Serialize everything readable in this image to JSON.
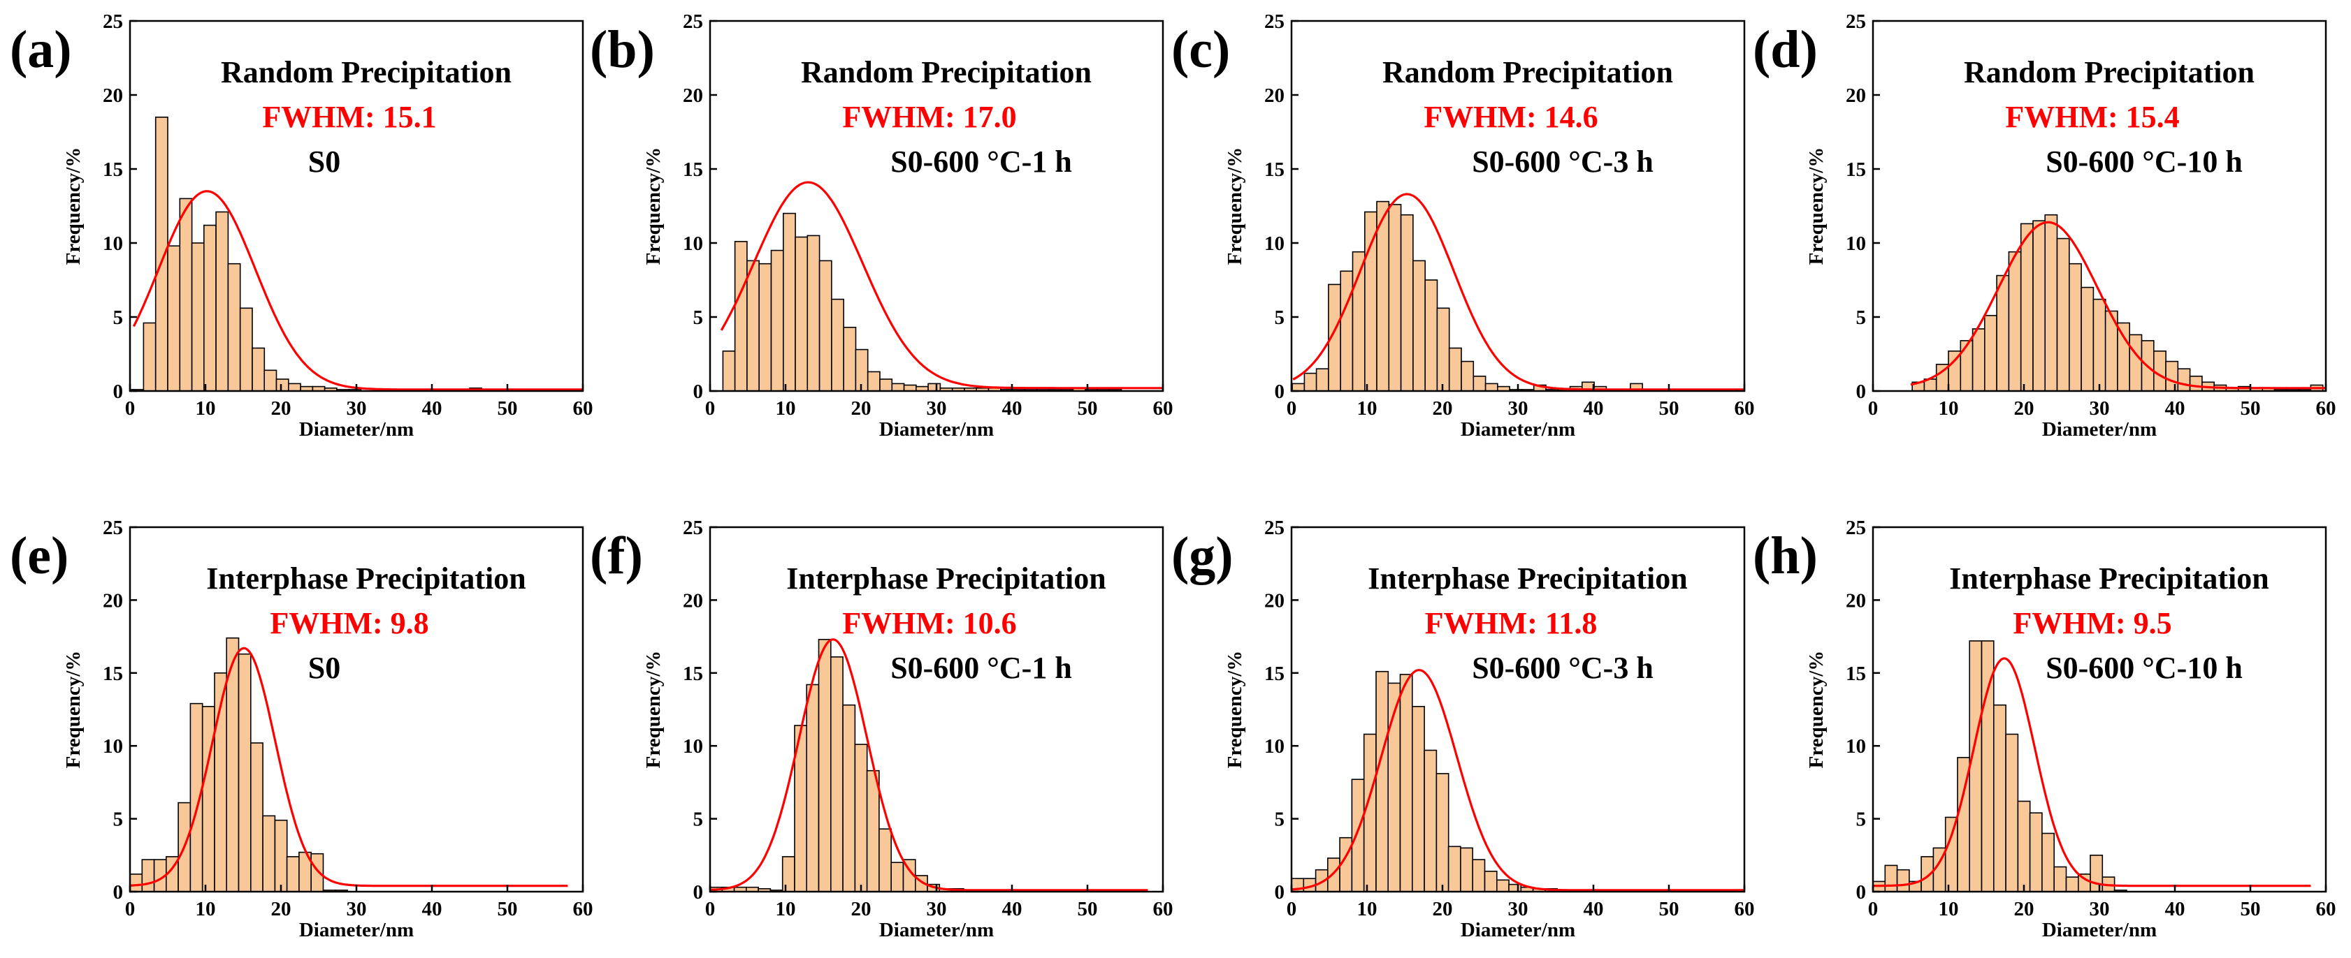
{
  "colors": {
    "bar_fill": "#f8c898",
    "bar_stroke": "#000000",
    "fit_line": "#ff0000",
    "fwhm_text": "#ff0000"
  },
  "chart_data": [
    {
      "type": "bar",
      "panel": "(a)",
      "title": "Random Precipitation",
      "fwhm": "FWHM: 15.1",
      "sample": "S0",
      "xlabel": "Diameter/nm",
      "ylabel": "Frequency/%",
      "xlim": [
        0,
        60
      ],
      "ylim": [
        0,
        25
      ],
      "xticks": [
        0,
        10,
        20,
        30,
        40,
        50,
        60
      ],
      "yticks": [
        0,
        5,
        10,
        15,
        20,
        25
      ],
      "bin_width": 1.6,
      "x": [
        1,
        2.6,
        4.2,
        5.8,
        7.4,
        9,
        10.6,
        12.2,
        13.8,
        15.4,
        17,
        18.6,
        20.2,
        21.8,
        23.4,
        25,
        26.6,
        28.2,
        29.8,
        31.4,
        33,
        34.6,
        36.2,
        37.8,
        39.4,
        41,
        42.6,
        44.2,
        45.8,
        47.4
      ],
      "values": [
        0.1,
        4.6,
        18.5,
        9.8,
        13.0,
        10.0,
        11.2,
        12.1,
        8.6,
        5.6,
        2.9,
        1.4,
        0.8,
        0.5,
        0.3,
        0.3,
        0.2,
        0.1,
        0.1,
        0,
        0,
        0,
        0,
        0,
        0,
        0,
        0,
        0,
        0.2,
        0
      ],
      "fit": {
        "amplitude": 13.4,
        "center": 10.2,
        "fwhm": 15.1,
        "offset": 0.1,
        "xrange": [
          0.5,
          60
        ]
      }
    },
    {
      "type": "bar",
      "panel": "(b)",
      "title": "Random Precipitation",
      "fwhm": "FWHM: 17.0",
      "sample": "S0-600 °C-1 h",
      "xlabel": "Diameter/nm",
      "ylabel": "Frequency/%",
      "xlim": [
        0,
        60
      ],
      "ylim": [
        0,
        25
      ],
      "xticks": [
        0,
        10,
        20,
        30,
        40,
        50,
        60
      ],
      "yticks": [
        0,
        5,
        10,
        15,
        20,
        25
      ],
      "bin_width": 1.6,
      "x": [
        2.5,
        4.1,
        5.7,
        7.3,
        8.9,
        10.5,
        12.1,
        13.7,
        15.3,
        16.9,
        18.5,
        20.1,
        21.7,
        23.3,
        24.9,
        26.5,
        28.1,
        29.7,
        31.3,
        32.9,
        34.5,
        36.1,
        37.7,
        39.3,
        40.9,
        42.5,
        44.1,
        45.7,
        47.3,
        48.9,
        50.5,
        52.1,
        53.7
      ],
      "values": [
        2.7,
        10.1,
        8.8,
        8.6,
        9.5,
        12.0,
        10.4,
        10.5,
        8.8,
        6.2,
        4.3,
        2.8,
        1.3,
        0.8,
        0.5,
        0.4,
        0.3,
        0.5,
        0.2,
        0.2,
        0.2,
        0.2,
        0.2,
        0.1,
        0.1,
        0.1,
        0.1,
        0.1,
        0.1,
        0.2,
        0.1,
        0.1,
        0.1
      ],
      "fit": {
        "amplitude": 13.9,
        "center": 13.0,
        "fwhm": 17.0,
        "offset": 0.2,
        "xrange": [
          1.5,
          60
        ]
      }
    },
    {
      "type": "bar",
      "panel": "(c)",
      "title": "Random Precipitation",
      "fwhm": "FWHM: 14.6",
      "sample": "S0-600 °C-3 h",
      "xlabel": "Diameter/nm",
      "ylabel": "Frequency/%",
      "xlim": [
        0,
        60
      ],
      "ylim": [
        0,
        25
      ],
      "xticks": [
        0,
        10,
        20,
        30,
        40,
        50,
        60
      ],
      "yticks": [
        0,
        5,
        10,
        15,
        20,
        25
      ],
      "bin_width": 1.6,
      "x": [
        0.9,
        2.5,
        4.1,
        5.7,
        7.3,
        8.9,
        10.5,
        12.1,
        13.7,
        15.3,
        16.9,
        18.5,
        20.1,
        21.7,
        23.3,
        24.9,
        26.5,
        28.1,
        29.7,
        31.3,
        32.9,
        34.5,
        36.1,
        37.7,
        39.3,
        40.9,
        42.5,
        44.1,
        45.7,
        47.3
      ],
      "values": [
        0.5,
        1.2,
        1.5,
        7.2,
        8.1,
        9.4,
        12.1,
        12.8,
        12.6,
        11.9,
        8.8,
        7.5,
        5.6,
        2.9,
        2.0,
        1.0,
        0.5,
        0.3,
        0.1,
        0.1,
        0.4,
        0.1,
        0.1,
        0.3,
        0.6,
        0.3,
        0.1,
        0.1,
        0.5,
        0.1
      ],
      "fit": {
        "amplitude": 13.2,
        "center": 15.3,
        "fwhm": 14.6,
        "offset": 0.1,
        "xrange": [
          0.2,
          60
        ]
      }
    },
    {
      "type": "bar",
      "panel": "(d)",
      "title": "Random Precipitation",
      "fwhm": "FWHM: 15.4",
      "sample": "S0-600 °C-10 h",
      "xlabel": "Diameter/nm",
      "ylabel": "Frequency/%",
      "xlim": [
        0,
        60
      ],
      "ylim": [
        0,
        25
      ],
      "xticks": [
        0,
        10,
        20,
        30,
        40,
        50,
        60
      ],
      "yticks": [
        0,
        5,
        10,
        15,
        20,
        25
      ],
      "bin_width": 1.6,
      "x": [
        6,
        7.6,
        9.2,
        10.8,
        12.4,
        14,
        15.6,
        17.2,
        18.8,
        20.4,
        22,
        23.6,
        25.2,
        26.8,
        28.4,
        30,
        31.6,
        33.2,
        34.8,
        36.4,
        38,
        39.6,
        41.2,
        42.8,
        44.4,
        46,
        47.6,
        49.2,
        50.8,
        52.4,
        54,
        55.6,
        57.2,
        58.8
      ],
      "values": [
        0.6,
        0.8,
        1.8,
        2.7,
        3.4,
        4.2,
        5.1,
        7.8,
        9.4,
        11.3,
        11.5,
        11.9,
        10.3,
        8.6,
        7.0,
        6.2,
        5.4,
        4.6,
        3.8,
        3.4,
        2.7,
        2.0,
        1.5,
        1.0,
        0.6,
        0.4,
        0.2,
        0.3,
        0.2,
        0.2,
        0.1,
        0.1,
        0.1,
        0.4
      ],
      "fit": {
        "amplitude": 11.2,
        "center": 23.2,
        "fwhm": 15.4,
        "offset": 0.2,
        "xrange": [
          5,
          60
        ]
      }
    },
    {
      "type": "bar",
      "panel": "(e)",
      "title": "Interphase Precipitation",
      "fwhm": "FWHM: 9.8",
      "sample": "S0",
      "xlabel": "Diameter/nm",
      "ylabel": "Frequency/%",
      "xlim": [
        0,
        60
      ],
      "ylim": [
        0,
        25
      ],
      "xticks": [
        0,
        10,
        20,
        30,
        40,
        50,
        60
      ],
      "yticks": [
        0,
        5,
        10,
        15,
        20,
        25
      ],
      "bin_width": 1.6,
      "x": [
        0.8,
        2.4,
        4.0,
        5.6,
        7.2,
        8.8,
        10.4,
        12.0,
        13.6,
        15.2,
        16.8,
        18.4,
        20.0,
        21.6,
        23.2,
        24.8,
        26.4,
        28.0
      ],
      "values": [
        1.2,
        2.2,
        2.2,
        2.4,
        6.1,
        12.9,
        12.7,
        15.0,
        17.4,
        16.3,
        10.2,
        5.2,
        4.9,
        2.4,
        2.7,
        2.6,
        0.1,
        0.1
      ],
      "fit": {
        "amplitude": 16.3,
        "center": 15.1,
        "fwhm": 9.8,
        "offset": 0.4,
        "xrange": [
          0,
          58
        ]
      }
    },
    {
      "type": "bar",
      "panel": "(f)",
      "title": "Interphase Precipitation",
      "fwhm": "FWHM: 10.6",
      "sample": "S0-600 °C-1 h",
      "xlabel": "Diameter/nm",
      "ylabel": "Frequency/%",
      "xlim": [
        0,
        60
      ],
      "ylim": [
        0,
        25
      ],
      "xticks": [
        0,
        10,
        20,
        30,
        40,
        50,
        60
      ],
      "yticks": [
        0,
        5,
        10,
        15,
        20,
        25
      ],
      "bin_width": 1.6,
      "x": [
        0.8,
        2.4,
        4.0,
        5.6,
        7.2,
        8.8,
        10.4,
        12.0,
        13.6,
        15.2,
        16.8,
        18.4,
        20.0,
        21.6,
        23.2,
        24.8,
        26.4,
        28.0,
        29.6,
        31.2,
        32.8,
        34.4
      ],
      "values": [
        0.3,
        0.3,
        0.3,
        0.3,
        0.2,
        0.1,
        2.4,
        11.4,
        14.2,
        17.3,
        16.1,
        12.8,
        10.1,
        8.3,
        4.3,
        2.0,
        2.2,
        1.1,
        0.5,
        0.2,
        0.2,
        0.1
      ],
      "fit": {
        "amplitude": 17.2,
        "center": 16.3,
        "fwhm": 10.6,
        "offset": 0.1,
        "xrange": [
          0,
          58
        ]
      }
    },
    {
      "type": "bar",
      "panel": "(g)",
      "title": "Interphase Precipitation",
      "fwhm": "FWHM: 11.8",
      "sample": "S0-600 °C-3 h",
      "xlabel": "Diameter/nm",
      "ylabel": "Frequency/%",
      "xlim": [
        0,
        60
      ],
      "ylim": [
        0,
        25
      ],
      "xticks": [
        0,
        10,
        20,
        30,
        40,
        50,
        60
      ],
      "yticks": [
        0,
        5,
        10,
        15,
        20,
        25
      ],
      "bin_width": 1.6,
      "x": [
        0.8,
        2.4,
        4.0,
        5.6,
        7.2,
        8.8,
        10.4,
        12.0,
        13.6,
        15.2,
        16.8,
        18.4,
        20.0,
        21.6,
        23.2,
        24.8,
        26.4,
        28.0,
        29.6,
        31.2,
        32.8,
        34.4,
        36.0,
        37.6
      ],
      "values": [
        0.9,
        0.9,
        1.5,
        2.3,
        3.7,
        7.7,
        10.8,
        15.1,
        14.3,
        14.9,
        12.7,
        9.7,
        8.1,
        3.1,
        3.0,
        2.2,
        1.4,
        0.8,
        0.5,
        0.3,
        0.2,
        0.2,
        0.1,
        0.1
      ],
      "fit": {
        "amplitude": 15.1,
        "center": 16.9,
        "fwhm": 11.8,
        "offset": 0.1,
        "xrange": [
          0,
          60
        ]
      }
    },
    {
      "type": "bar",
      "panel": "(h)",
      "title": "Interphase Precipitation",
      "fwhm": "FWHM: 9.5",
      "sample": "S0-600 °C-10 h",
      "xlabel": "Diameter/nm",
      "ylabel": "Frequency/%",
      "xlim": [
        0,
        60
      ],
      "ylim": [
        0,
        25
      ],
      "xticks": [
        0,
        10,
        20,
        30,
        40,
        50,
        60
      ],
      "yticks": [
        0,
        5,
        10,
        15,
        20,
        25
      ],
      "bin_width": 1.6,
      "x": [
        0.8,
        2.4,
        4.0,
        5.6,
        7.2,
        8.8,
        10.4,
        12.0,
        13.6,
        15.2,
        16.8,
        18.4,
        20.0,
        21.6,
        23.2,
        24.8,
        26.4,
        28.0,
        29.6,
        31.2,
        32.8
      ],
      "values": [
        0.7,
        1.8,
        1.5,
        0.7,
        2.4,
        3.0,
        5.1,
        9.2,
        17.2,
        17.2,
        12.8,
        10.8,
        6.2,
        5.4,
        4.0,
        1.7,
        1.0,
        1.2,
        2.5,
        1.0,
        0.1
      ],
      "fit": {
        "amplitude": 15.6,
        "center": 17.4,
        "fwhm": 9.5,
        "offset": 0.4,
        "xrange": [
          0,
          58
        ]
      }
    }
  ]
}
